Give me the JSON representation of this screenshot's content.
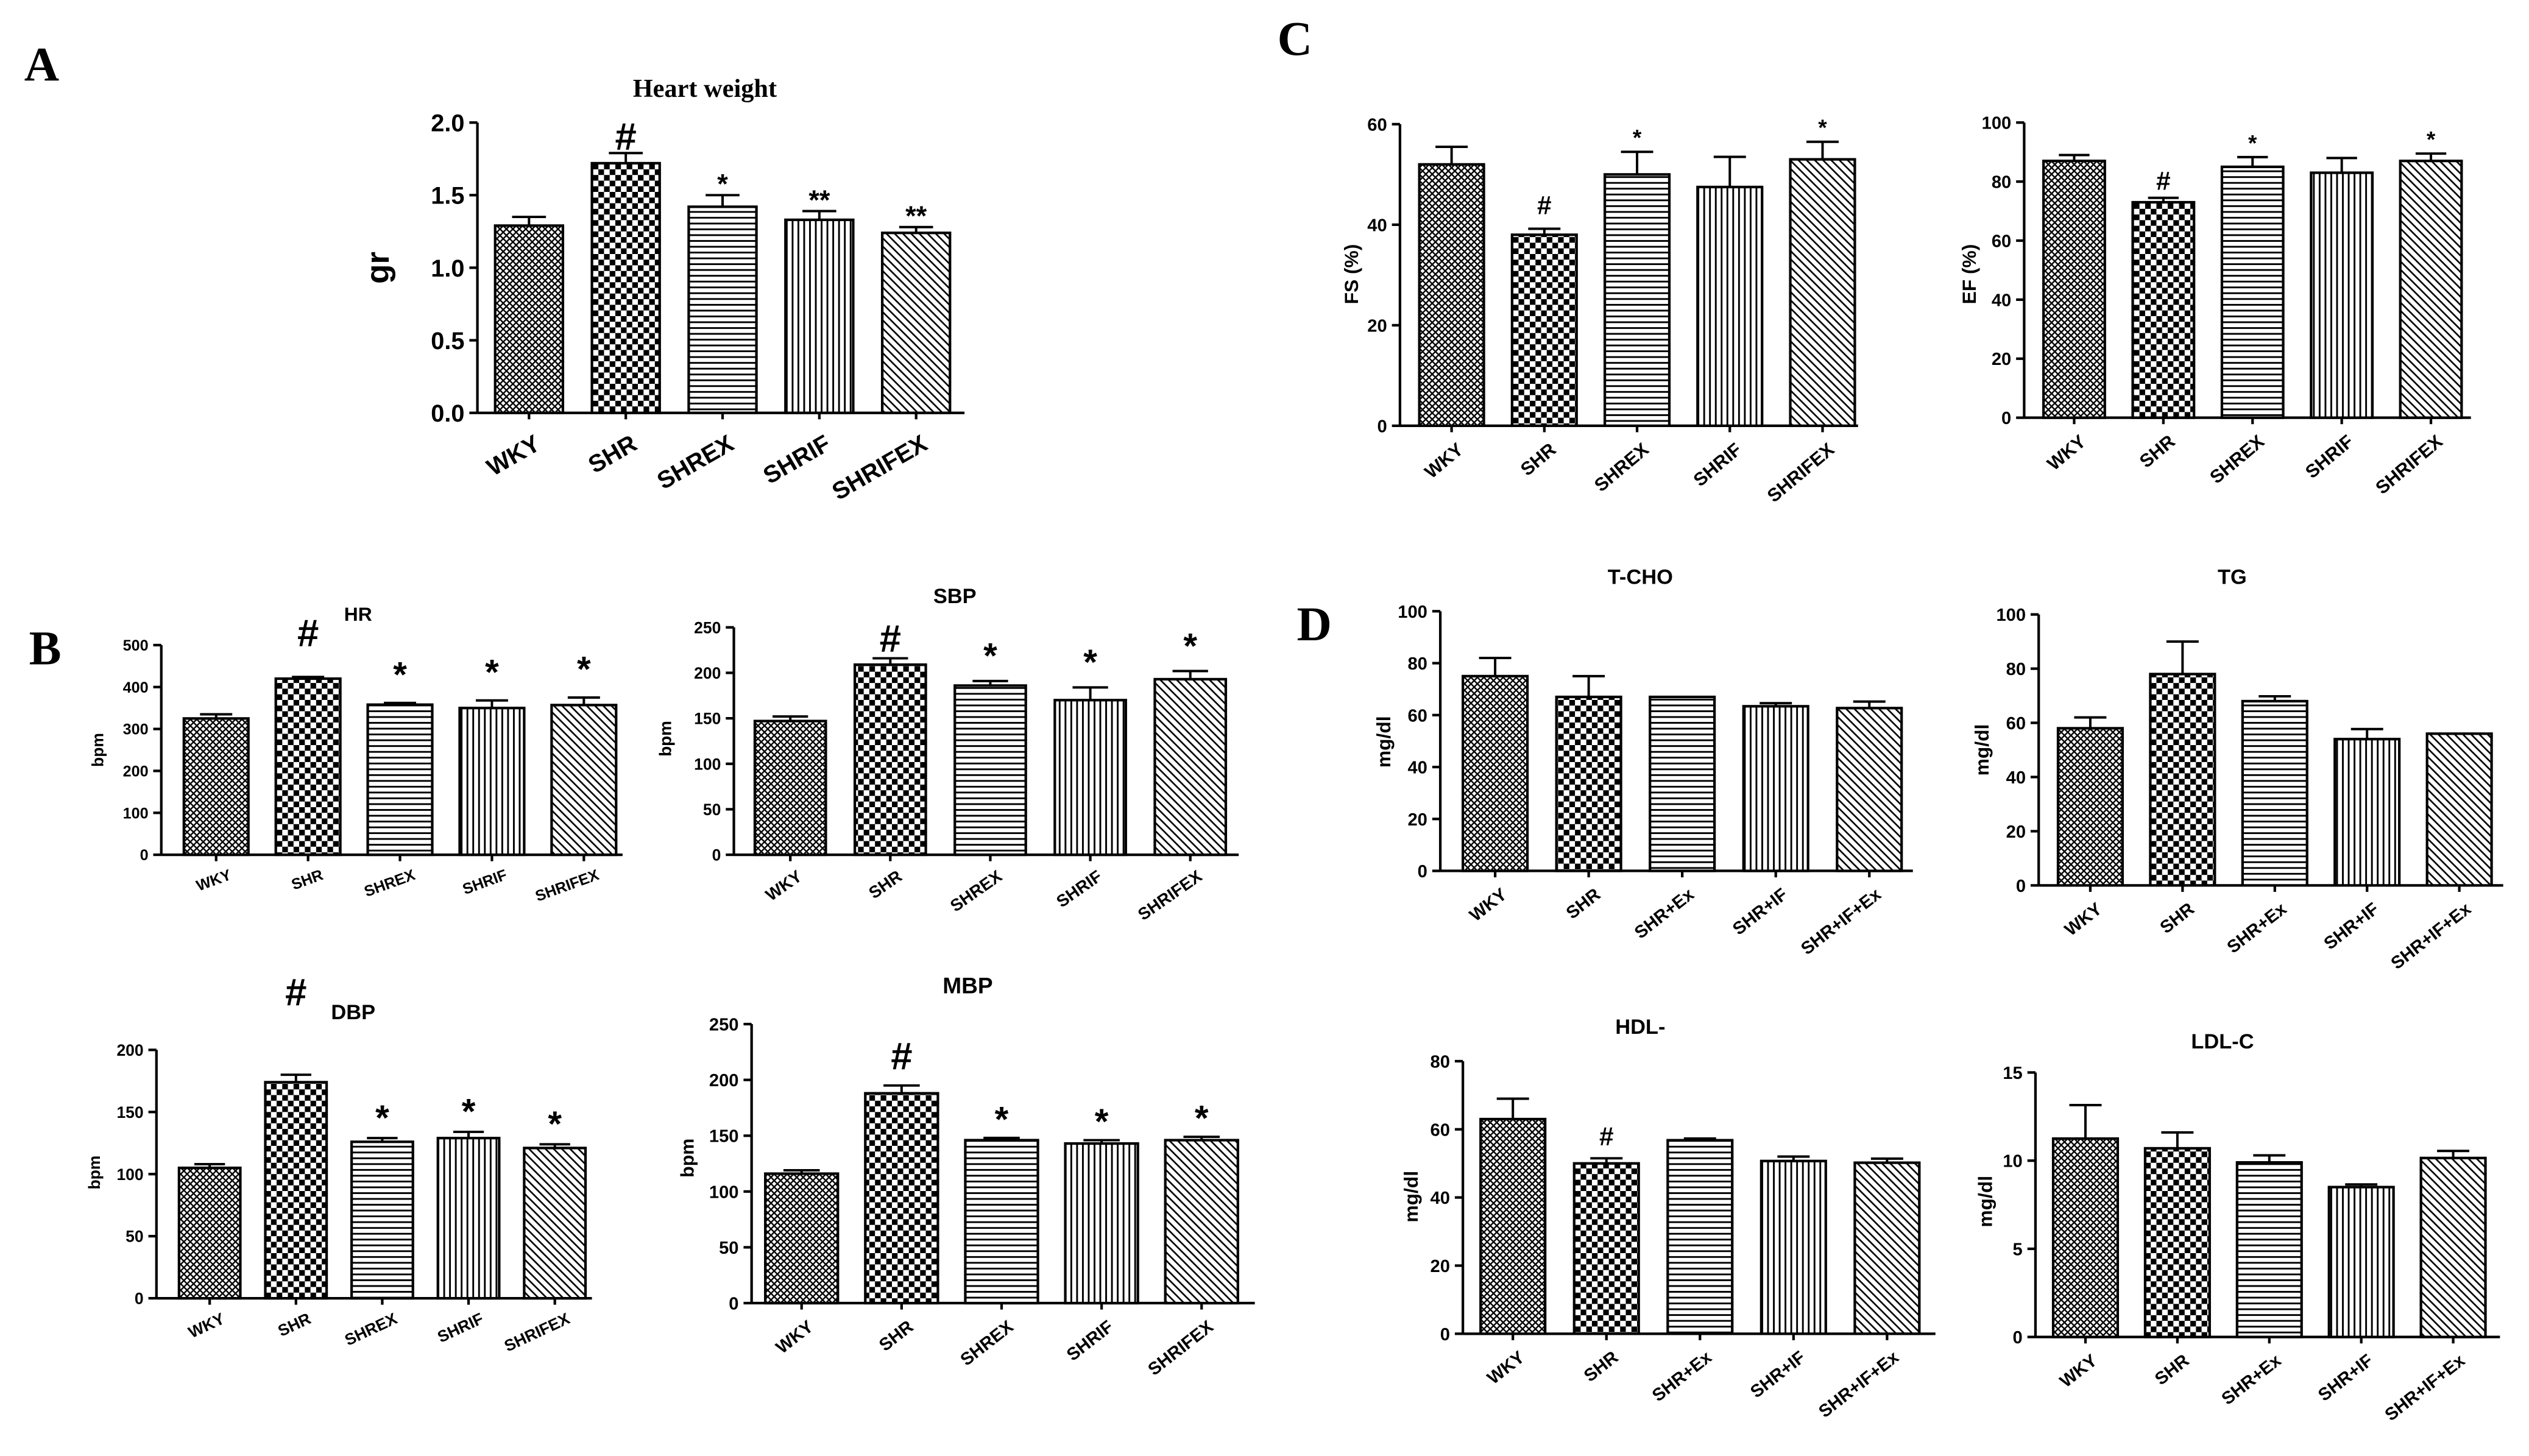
{
  "panel_labels": {
    "a": "A",
    "b": "B",
    "c": "C",
    "d": "D"
  },
  "chart_data": [
    {
      "type": "bar",
      "title": "Heart weight",
      "ylabel": "gr",
      "categories": [
        "WKY",
        "SHR",
        "SHREX",
        "SHRIF",
        "SHRIFEX"
      ],
      "values": [
        1.29,
        1.72,
        1.42,
        1.33,
        1.24
      ],
      "error_bars": [
        0.06,
        0.07,
        0.08,
        0.06,
        0.04
      ],
      "annotations": [
        "",
        "#",
        "*",
        "**",
        "**"
      ],
      "ylim": [
        0,
        2
      ],
      "yticks": [
        "0.0",
        "0.5",
        "1.0",
        "1.5",
        "2.0"
      ]
    },
    {
      "type": "bar",
      "ylabel": "FS (%)",
      "categories": [
        "WKY",
        "SHR",
        "SHREX",
        "SHRIF",
        "SHRIFEX"
      ],
      "values": [
        52,
        38,
        50,
        47.5,
        53
      ],
      "error_bars": [
        3.5,
        1.2,
        4.5,
        6,
        3.5
      ],
      "annotations": [
        "",
        "#",
        "*",
        "",
        "*"
      ],
      "ylim": [
        0,
        60
      ],
      "yticks": [
        "0",
        "20",
        "40",
        "60"
      ]
    },
    {
      "type": "bar",
      "ylabel": "EF (%)",
      "categories": [
        "WKY",
        "SHR",
        "SHREX",
        "SHRIF",
        "SHRIFEX"
      ],
      "values": [
        87,
        73,
        85,
        83,
        87
      ],
      "error_bars": [
        2,
        1.5,
        3.3,
        5,
        2.5
      ],
      "annotations": [
        "",
        "#",
        "*",
        "",
        "*"
      ],
      "ylim": [
        0,
        100
      ],
      "yticks": [
        "0",
        "20",
        "40",
        "60",
        "80",
        "100"
      ]
    },
    {
      "type": "bar",
      "title": "HR",
      "ylabel": "bpm",
      "categories": [
        "WKY",
        "SHR",
        "SHREX",
        "SHRIF",
        "SHRIFEX"
      ],
      "values": [
        325,
        420,
        358,
        350,
        357
      ],
      "error_bars": [
        10,
        4,
        4,
        18,
        18
      ],
      "annotations": [
        "",
        "#",
        "*",
        "*",
        "*"
      ],
      "ylim": [
        0,
        500
      ],
      "yticks": [
        "0",
        "100",
        "200",
        "300",
        "400",
        "500"
      ]
    },
    {
      "type": "bar",
      "title": "SBP",
      "ylabel": "bpm",
      "categories": [
        "WKY",
        "SHR",
        "SHREX",
        "SHRIF",
        "SHRIFEX"
      ],
      "values": [
        147,
        209,
        186,
        170,
        193
      ],
      "error_bars": [
        5,
        7,
        5,
        14,
        9
      ],
      "annotations": [
        "",
        "#",
        "*",
        "*",
        "*"
      ],
      "ylim": [
        0,
        250
      ],
      "yticks": [
        "0",
        "50",
        "100",
        "150",
        "200",
        "250"
      ]
    },
    {
      "type": "bar",
      "title": "DBP",
      "ylabel": "bpm",
      "categories": [
        "WKY",
        "SHR",
        "SHREX",
        "SHRIF",
        "SHRIFEX"
      ],
      "values": [
        105,
        174,
        126,
        129,
        121
      ],
      "error_bars": [
        3,
        6,
        3,
        5,
        3
      ],
      "annotations": [
        "",
        "#",
        "*",
        "*",
        "*"
      ],
      "ylim": [
        0,
        200
      ],
      "yticks": [
        "0",
        "50",
        "100",
        "150",
        "200"
      ]
    },
    {
      "type": "bar",
      "title": "MBP",
      "ylabel": "bpm",
      "categories": [
        "WKY",
        "SHR",
        "SHREX",
        "SHRIF",
        "SHRIFEX"
      ],
      "values": [
        116,
        188,
        146,
        143,
        146
      ],
      "error_bars": [
        3,
        7,
        2,
        3,
        3
      ],
      "annotations": [
        "",
        "#",
        "*",
        "*",
        "*"
      ],
      "ylim": [
        0,
        250
      ],
      "yticks": [
        "0",
        "50",
        "100",
        "150",
        "200",
        "250"
      ]
    },
    {
      "type": "bar",
      "title": "T-CHO",
      "ylabel": "mg/dl",
      "categories": [
        "WKY",
        "SHR",
        "SHR+Ex",
        "SHR+IF",
        "SHR+IF+Ex"
      ],
      "values": [
        75,
        67,
        67,
        63.4,
        62.7
      ],
      "error_bars": [
        7,
        8,
        0,
        1.2,
        2.5
      ],
      "ylim": [
        0,
        100
      ],
      "yticks": [
        "0",
        "20",
        "40",
        "60",
        "80",
        "100"
      ]
    },
    {
      "type": "bar",
      "title": "TG",
      "ylabel": "mg/dl",
      "categories": [
        "WKY",
        "SHR",
        "SHR+Ex",
        "SHR+IF",
        "SHR+IF+Ex"
      ],
      "values": [
        58,
        78,
        68,
        54,
        56
      ],
      "error_bars": [
        4,
        12,
        1.8,
        3.7,
        0
      ],
      "ylim": [
        0,
        100
      ],
      "yticks": [
        "0",
        "20",
        "40",
        "60",
        "80",
        "100"
      ]
    },
    {
      "type": "bar",
      "title": "HDL-",
      "ylabel": "mg/dl",
      "categories": [
        "WKY",
        "SHR",
        "SHR+Ex",
        "SHR+IF",
        "SHR+IF+Ex"
      ],
      "values": [
        63,
        50,
        56.8,
        50.7,
        50.2
      ],
      "error_bars": [
        6,
        1.5,
        0.5,
        1.3,
        1.2
      ],
      "annotations": [
        "",
        "#",
        "",
        "",
        ""
      ],
      "ylim": [
        0,
        80
      ],
      "yticks": [
        "0",
        "20",
        "40",
        "60",
        "80"
      ]
    },
    {
      "type": "bar",
      "title": "LDL-C",
      "ylabel": "mg/dl",
      "categories": [
        "WKY",
        "SHR",
        "SHR+Ex",
        "SHR+IF",
        "SHR+IF+Ex"
      ],
      "values": [
        11.25,
        10.7,
        9.9,
        8.5,
        10.15
      ],
      "error_bars": [
        1.9,
        0.9,
        0.4,
        0.15,
        0.4
      ],
      "ylim": [
        0,
        15
      ],
      "yticks": [
        "0",
        "5",
        "10",
        "15"
      ]
    }
  ]
}
